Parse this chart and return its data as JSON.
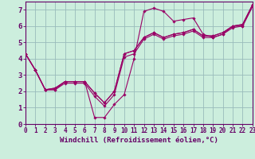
{
  "xlabel": "Windchill (Refroidissement éolien,°C)",
  "background_color": "#cceedd",
  "line_color": "#990066",
  "grid_color": "#99bbbb",
  "x_hours": [
    0,
    1,
    2,
    3,
    4,
    5,
    6,
    7,
    8,
    9,
    10,
    11,
    12,
    13,
    14,
    15,
    16,
    17,
    18,
    19,
    20,
    21,
    22,
    23
  ],
  "series": [
    [
      4.3,
      3.3,
      2.1,
      2.1,
      2.6,
      2.6,
      2.6,
      0.4,
      0.4,
      1.2,
      1.8,
      4.0,
      6.9,
      7.1,
      6.9,
      6.3,
      6.4,
      6.5,
      5.5,
      5.3,
      5.5,
      6.0,
      6.0,
      7.2
    ],
    [
      4.3,
      3.3,
      2.1,
      2.1,
      2.5,
      2.5,
      2.5,
      1.7,
      1.1,
      1.8,
      4.1,
      4.3,
      5.2,
      5.5,
      5.2,
      5.4,
      5.5,
      5.7,
      5.3,
      5.3,
      5.5,
      5.9,
      6.0,
      7.2
    ],
    [
      4.3,
      3.3,
      2.1,
      2.2,
      2.6,
      2.6,
      2.6,
      1.9,
      1.3,
      2.0,
      4.3,
      4.5,
      5.3,
      5.6,
      5.3,
      5.5,
      5.6,
      5.8,
      5.4,
      5.4,
      5.6,
      6.0,
      6.1,
      7.3
    ],
    [
      4.3,
      3.3,
      2.1,
      2.2,
      2.6,
      2.6,
      2.6,
      1.9,
      1.3,
      2.0,
      4.3,
      4.5,
      5.3,
      5.6,
      5.3,
      5.5,
      5.6,
      5.8,
      5.4,
      5.4,
      5.6,
      6.0,
      6.1,
      7.3
    ]
  ],
  "xlim": [
    0,
    23
  ],
  "ylim": [
    0,
    7.5
  ],
  "ytick_vals": [
    0,
    1,
    2,
    3,
    4,
    5,
    6,
    7
  ],
  "xtick_labels": [
    "0",
    "1",
    "2",
    "3",
    "4",
    "5",
    "6",
    "7",
    "8",
    "9",
    "10",
    "11",
    "12",
    "13",
    "14",
    "15",
    "16",
    "17",
    "18",
    "19",
    "20",
    "21",
    "22",
    "23"
  ],
  "ytick_labels": [
    "0",
    "1",
    "2",
    "3",
    "4",
    "5",
    "6",
    "7"
  ],
  "axis_color": "#660066",
  "tick_fontsize": 5.5,
  "xlabel_fontsize": 6.5,
  "marker_size": 1.8,
  "line_width": 0.8
}
